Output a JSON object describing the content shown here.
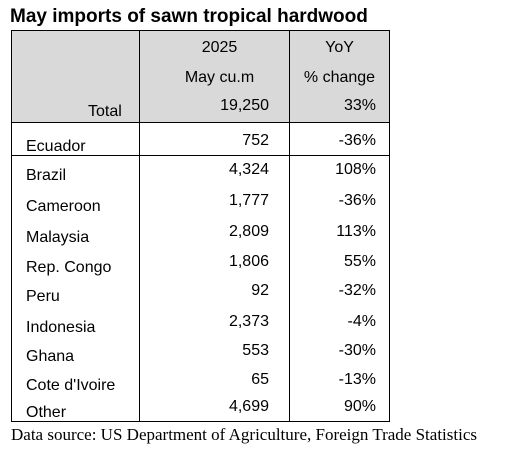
{
  "title": "May imports of sawn tropical hardwood",
  "header": {
    "col2_line1": "2025",
    "col2_line2": "May cu.m",
    "col3_line1": "YoY",
    "col3_line2": "% change"
  },
  "total": {
    "label": "Total",
    "volume": "19,250",
    "change": "33%"
  },
  "rows": [
    {
      "country": "Ecuador",
      "volume": "752",
      "change": "-36%"
    },
    {
      "country": "Brazil",
      "volume": "4,324",
      "change": "108%"
    },
    {
      "country": "Cameroon",
      "volume": "1,777",
      "change": "-36%"
    },
    {
      "country": "Malaysia",
      "volume": "2,809",
      "change": "113%"
    },
    {
      "country": "Rep. Congo",
      "volume": "1,806",
      "change": "55%"
    },
    {
      "country": "Peru",
      "volume": "92",
      "change": "-32%"
    },
    {
      "country": "Indonesia",
      "volume": "2,373",
      "change": "-4%"
    },
    {
      "country": "Ghana",
      "volume": "553",
      "change": "-30%"
    },
    {
      "country": "Cote d'Ivoire",
      "volume": "65",
      "change": "-13%"
    },
    {
      "country": "Other",
      "volume": "4,699",
      "change": "90%"
    }
  ],
  "source": "Data source: US Department of Agriculture, Foreign Trade Statistics"
}
